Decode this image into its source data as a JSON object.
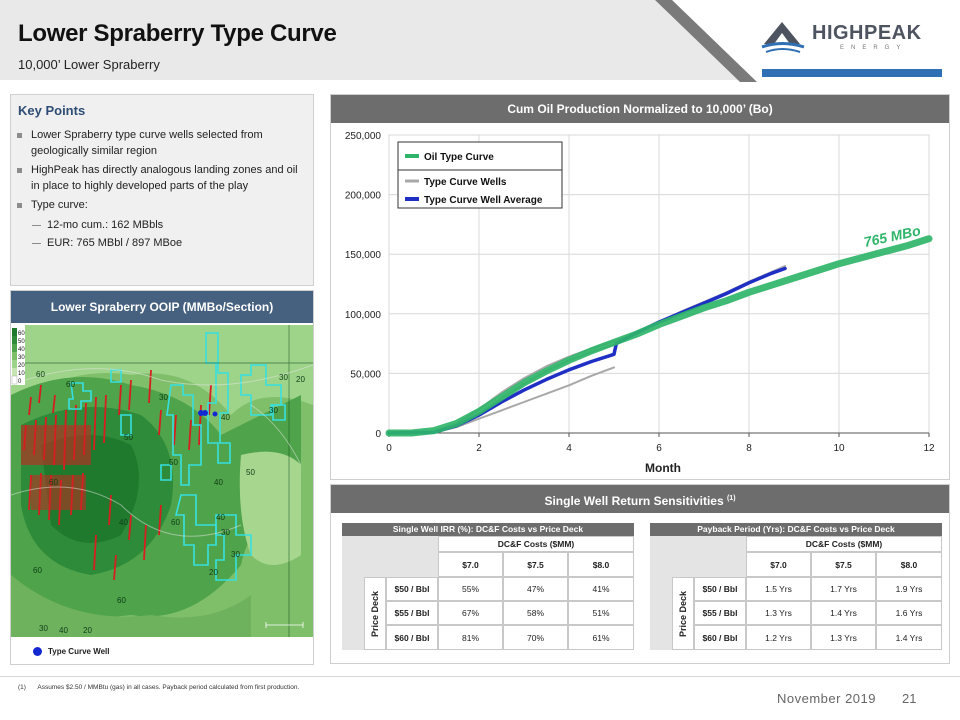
{
  "header": {
    "title": "Lower Spraberry Type Curve",
    "subtitle": "10,000’ Lower Spraberry",
    "logo_word": "HIGHPEAK",
    "logo_sub": "ENERGY",
    "brand_blue": "#2f6fb4"
  },
  "key_points": {
    "title": "Key Points",
    "bullets": [
      "Lower Spraberry type curve wells selected from geologically similar region",
      "HighPeak has directly analogous landing zones and oil in place to highly developed parts of the play",
      "Type curve:"
    ],
    "sub_bullets": [
      "12-mo cum.: 162 MBbls",
      "EUR: 765 MBbl / 897 MBoe"
    ]
  },
  "map": {
    "title": "Lower Spraberry OOIP (MMBo/Section)",
    "legend_scale": [
      "60",
      "50",
      "40",
      "30",
      "20",
      "10",
      "0"
    ],
    "contour_labels": [
      "60",
      "60",
      "30",
      "30",
      "20",
      "40",
      "30",
      "50",
      "50",
      "60",
      "40",
      "50",
      "60",
      "40",
      "30",
      "30",
      "40",
      "60",
      "20",
      "60",
      "30",
      "40",
      "20"
    ],
    "legend_label": "Type Curve Well",
    "well_color": "#1428d2"
  },
  "chart_panel_title": "Cum Oil Production Normalized to 10,000’ (Bo)",
  "chart_data": {
    "type": "line",
    "xlabel": "Month",
    "ylabel": "",
    "xlim": [
      0,
      12
    ],
    "ylim": [
      0,
      250000
    ],
    "xticks": [
      "0",
      "2",
      "4",
      "6",
      "8",
      "10",
      "12"
    ],
    "yticks": [
      "0",
      "50,000",
      "100,000",
      "150,000",
      "200,000",
      "250,000"
    ],
    "annotation": "765 MBo",
    "legend": {
      "placement": "top-left",
      "type_curve_label": "Oil Type Curve",
      "wells_label": "Type Curve Wells",
      "average_label": "Type Curve Well Average"
    },
    "series": [
      {
        "name": "Oil Type Curve",
        "color": "#2fb56a",
        "x": [
          0,
          0.5,
          1,
          1.5,
          2,
          2.5,
          3,
          3.5,
          4,
          4.5,
          5,
          5.5,
          6,
          6.5,
          7,
          7.5,
          8,
          8.5,
          9,
          9.5,
          10,
          10.5,
          11,
          11.5,
          12
        ],
        "y": [
          0,
          0,
          2000,
          8000,
          18000,
          30000,
          42000,
          52000,
          61000,
          69000,
          76000,
          83000,
          91000,
          98000,
          105000,
          111000,
          118000,
          124000,
          130000,
          136000,
          142000,
          147000,
          152000,
          157000,
          163000
        ]
      },
      {
        "name": "Type Curve Wells",
        "color": "#a8a8a8",
        "x": [
          0,
          1,
          1.5,
          2,
          2.5,
          3,
          3.5,
          4,
          4.5,
          5,
          5.5,
          6,
          6.5,
          7,
          7.5,
          8,
          8.5,
          8.8
        ],
        "y": [
          0,
          1000,
          8000,
          20000,
          34000,
          46000,
          56000,
          64000,
          71000,
          77000,
          84000,
          93000,
          102000,
          110000,
          118000,
          127000,
          135000,
          140000
        ]
      },
      {
        "name": "Type Curve Wells",
        "color": "#a8a8a8",
        "x": [
          0,
          1,
          1.5,
          2,
          2.5,
          3,
          3.5,
          4,
          4.5,
          5
        ],
        "y": [
          0,
          500,
          5000,
          12000,
          19000,
          26000,
          33000,
          40000,
          48000,
          55000
        ]
      },
      {
        "name": "Type Curve Wells",
        "color": "#a8a8a8",
        "x": [
          0,
          1,
          1.5,
          2,
          2.5,
          3,
          3.5,
          4,
          4.5,
          5
        ],
        "y": [
          0,
          800,
          6000,
          16000,
          29000,
          41000,
          52000,
          61000,
          68000,
          74000
        ]
      },
      {
        "name": "Type Curve Well Average",
        "color": "#1f2fc4",
        "x": [
          0,
          1,
          1.5,
          2,
          2.5,
          3,
          3.5,
          4,
          4.5,
          5,
          5.05,
          5.5,
          6,
          6.5,
          7,
          7.5,
          8,
          8.5,
          8.8
        ],
        "y": [
          0,
          700,
          6000,
          15000,
          26000,
          36000,
          45000,
          53000,
          60000,
          66000,
          75000,
          84000,
          93000,
          101000,
          109000,
          117000,
          126000,
          134000,
          138000
        ]
      }
    ]
  },
  "sensitivities": {
    "title": "Single Well Return Sensitivities",
    "footnote_ref": "(1)",
    "irr": {
      "title": "Single Well IRR (%): DC&F Costs vs Price Deck",
      "col_group": "DC&F Costs ($MM)",
      "cols": [
        "$7.0",
        "$7.5",
        "$8.0"
      ],
      "row_group": "Price Deck",
      "rows": [
        "$50 / Bbl",
        "$55 / Bbl",
        "$60 / Bbl"
      ],
      "values": [
        [
          "55%",
          "47%",
          "41%"
        ],
        [
          "67%",
          "58%",
          "51%"
        ],
        [
          "81%",
          "70%",
          "61%"
        ]
      ]
    },
    "payback": {
      "title": "Payback Period (Yrs): DC&F Costs vs Price Deck",
      "col_group": "DC&F Costs ($MM)",
      "cols": [
        "$7.0",
        "$7.5",
        "$8.0"
      ],
      "row_group": "Price Deck",
      "rows": [
        "$50 / Bbl",
        "$55 / Bbl",
        "$60 / Bbl"
      ],
      "values": [
        [
          "1.5 Yrs",
          "1.7 Yrs",
          "1.9 Yrs"
        ],
        [
          "1.3 Yrs",
          "1.4 Yrs",
          "1.6 Yrs"
        ],
        [
          "1.2 Yrs",
          "1.3 Yrs",
          "1.4 Yrs"
        ]
      ]
    }
  },
  "footer": {
    "footnote_num": "(1)",
    "footnote": "Assumes $2.50 / MMBtu (gas) in all cases. Payback period calculated from first production.",
    "date": "November 2019",
    "page": "21"
  }
}
